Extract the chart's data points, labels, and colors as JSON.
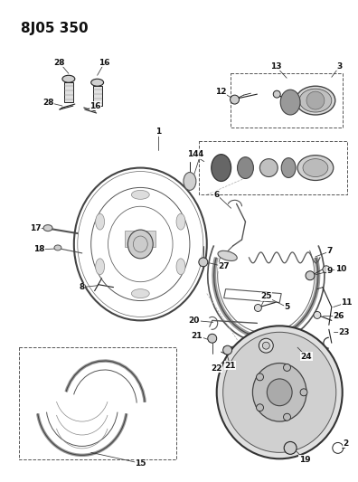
{
  "title": "8J05 350",
  "bg_color": "#ffffff",
  "fig_width": 3.96,
  "fig_height": 5.33,
  "dpi": 100,
  "lc": "#222222",
  "title_fontsize": 11,
  "label_fontsize": 6.5
}
